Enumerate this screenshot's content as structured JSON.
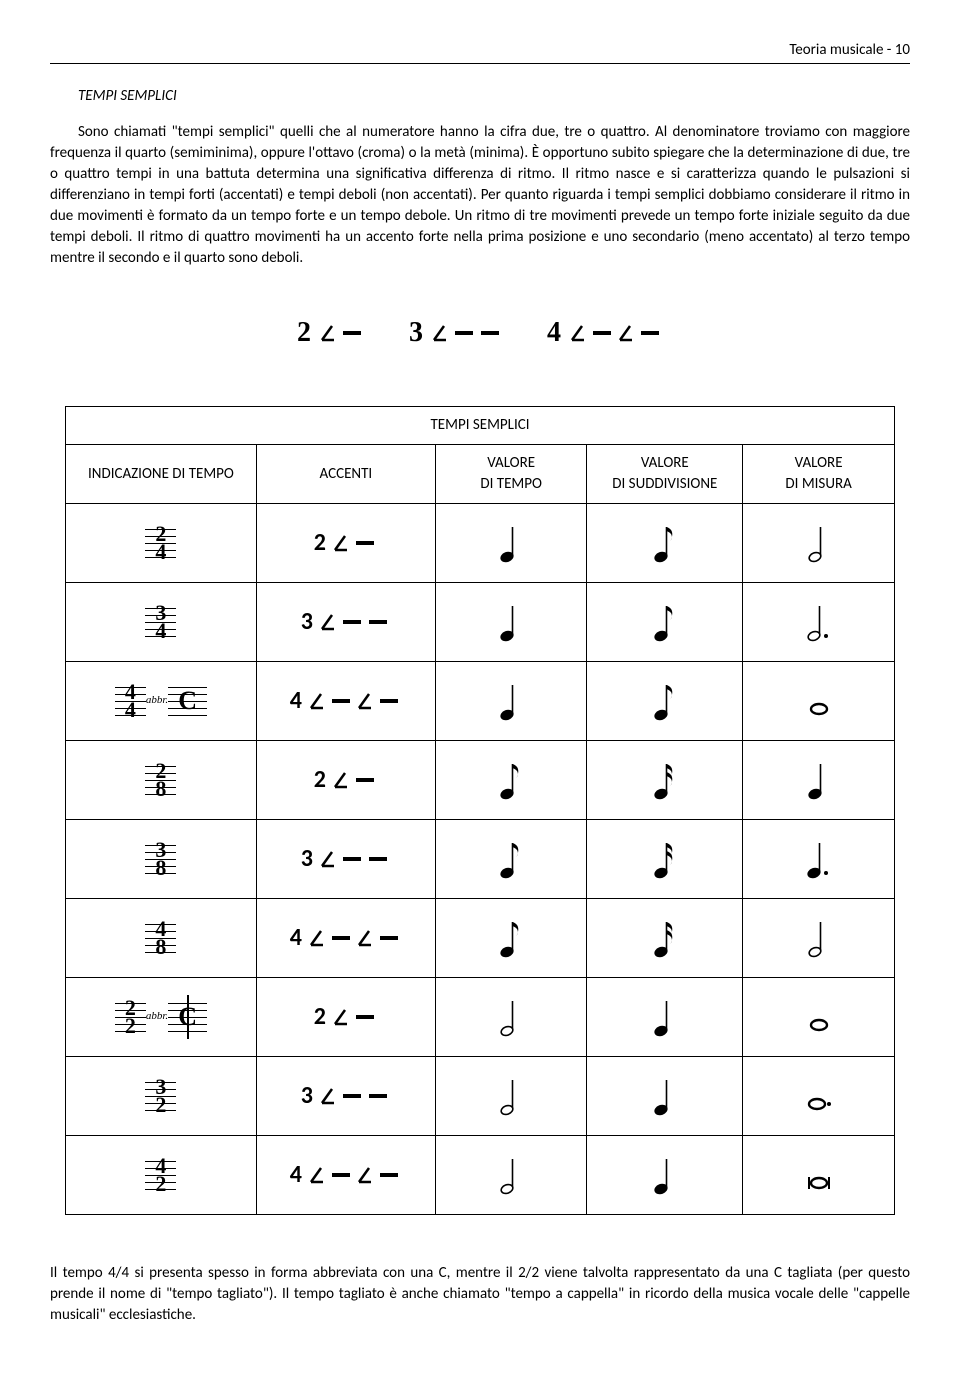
{
  "header": {
    "text": "Teoria musicale - 10"
  },
  "section_title": "TEMPI SEMPLICI",
  "paragraph1": "Sono chiamati \"tempi semplici\" quelli che al numeratore hanno la cifra due, tre o quattro. Al denominatore troviamo con maggiore frequenza il quarto (semiminima), oppure l'ottavo (croma) o la metà (minima). È opportuno subito spiegare che la determinazione di due, tre o quattro tempi in una battuta determina una significativa differenza di ritmo. Il ritmo nasce e si caratterizza quando le pulsazioni si differenziano in tempi forti (accentati) e tempi deboli (non accentati). Per quanto riguarda i tempi semplici dobbiamo considerare il ritmo in due movimenti è formato da un tempo forte e un tempo debole. Un ritmo di tre movimenti prevede un tempo forte iniziale seguito da due tempi deboli. Il ritmo di quattro movimenti ha un accento forte nella prima posizione e uno secondario (meno accentato) al terzo tempo mentre il secondo e il quarto sono deboli.",
  "diagram": {
    "groups": [
      {
        "num": "2",
        "pattern": [
          "strong",
          "weak"
        ]
      },
      {
        "num": "3",
        "pattern": [
          "strong",
          "weak",
          "weak"
        ]
      },
      {
        "num": "4",
        "pattern": [
          "strong",
          "weak",
          "strong",
          "weak"
        ]
      }
    ]
  },
  "table": {
    "title": "TEMPI SEMPLICI",
    "columns": [
      "INDICAZIONE DI TEMPO",
      "ACCENTI",
      "VALORE DI TEMPO",
      "VALORE DI SUDDIVISIONE",
      "VALORE DI MISURA"
    ],
    "rows": [
      {
        "sig": {
          "num": "2",
          "den": "4"
        },
        "abbr": null,
        "accent": {
          "num": "2",
          "pattern": [
            "strong",
            "weak"
          ]
        },
        "tempo": "quarter",
        "sub": "eighth",
        "misura": "half"
      },
      {
        "sig": {
          "num": "3",
          "den": "4"
        },
        "abbr": null,
        "accent": {
          "num": "3",
          "pattern": [
            "strong",
            "weak",
            "weak"
          ]
        },
        "tempo": "quarter",
        "sub": "eighth",
        "misura": "dhalf"
      },
      {
        "sig": {
          "num": "4",
          "den": "4"
        },
        "abbr": "C",
        "accent": {
          "num": "4",
          "pattern": [
            "strong",
            "weak",
            "strong",
            "weak"
          ]
        },
        "tempo": "quarter",
        "sub": "eighth",
        "misura": "whole"
      },
      {
        "sig": {
          "num": "2",
          "den": "8"
        },
        "abbr": null,
        "accent": {
          "num": "2",
          "pattern": [
            "strong",
            "weak"
          ]
        },
        "tempo": "eighth",
        "sub": "sixteenth",
        "misura": "quarter"
      },
      {
        "sig": {
          "num": "3",
          "den": "8"
        },
        "abbr": null,
        "accent": {
          "num": "3",
          "pattern": [
            "strong",
            "weak",
            "weak"
          ]
        },
        "tempo": "eighth",
        "sub": "sixteenth",
        "misura": "dquarter"
      },
      {
        "sig": {
          "num": "4",
          "den": "8"
        },
        "abbr": null,
        "accent": {
          "num": "4",
          "pattern": [
            "strong",
            "weak",
            "strong",
            "weak"
          ]
        },
        "tempo": "eighth",
        "sub": "sixteenth",
        "misura": "half"
      },
      {
        "sig": {
          "num": "2",
          "den": "2"
        },
        "abbr": "cut",
        "accent": {
          "num": "2",
          "pattern": [
            "strong",
            "weak"
          ]
        },
        "tempo": "half",
        "sub": "quarter",
        "misura": "whole"
      },
      {
        "sig": {
          "num": "3",
          "den": "2"
        },
        "abbr": null,
        "accent": {
          "num": "3",
          "pattern": [
            "strong",
            "weak",
            "weak"
          ]
        },
        "tempo": "half",
        "sub": "quarter",
        "misura": "dwhole"
      },
      {
        "sig": {
          "num": "4",
          "den": "2"
        },
        "abbr": null,
        "accent": {
          "num": "4",
          "pattern": [
            "strong",
            "weak",
            "strong",
            "weak"
          ]
        },
        "tempo": "half",
        "sub": "quarter",
        "misura": "breve"
      }
    ],
    "abbr_label": "abbr."
  },
  "footer": "Il tempo 4/4 si presenta spesso in forma abbreviata con una C, mentre il 2/2 viene talvolta rappresentato da una C tagliata (per questo prende il nome di \"tempo tagliato\"). Il tempo tagliato è anche chiamato \"tempo a cappella\" in ricordo della musica vocale delle \"cappelle musicali\" ecclesiastiche.",
  "colors": {
    "text": "#000000",
    "bg": "#ffffff",
    "border": "#000000"
  }
}
